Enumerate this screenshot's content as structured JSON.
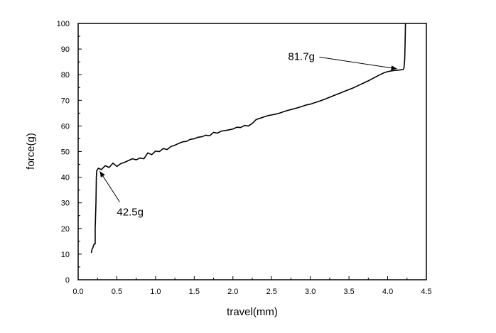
{
  "chart_data": {
    "type": "line",
    "title": "",
    "xlabel": "travel(mm)",
    "ylabel": "force(g)",
    "xlim": [
      0.0,
      4.5
    ],
    "ylim": [
      0,
      100
    ],
    "grid": false,
    "x_ticks": [
      "0.0",
      "0.5",
      "1.0",
      "1.5",
      "2.0",
      "2.5",
      "3.0",
      "3.5",
      "4.0",
      "4.5"
    ],
    "y_ticks": [
      "0",
      "10",
      "20",
      "30",
      "40",
      "50",
      "60",
      "70",
      "80",
      "90",
      "100"
    ],
    "series": [
      {
        "color": "#000000",
        "points": [
          [
            0.17,
            10.5
          ],
          [
            0.18,
            12
          ],
          [
            0.19,
            12.5
          ],
          [
            0.2,
            13.5
          ],
          [
            0.21,
            14
          ],
          [
            0.22,
            14
          ],
          [
            0.22,
            20
          ],
          [
            0.23,
            30
          ],
          [
            0.235,
            40
          ],
          [
            0.24,
            42.5
          ],
          [
            0.26,
            43.5
          ],
          [
            0.3,
            43
          ],
          [
            0.35,
            44.5
          ],
          [
            0.4,
            43.8
          ],
          [
            0.45,
            45.5
          ],
          [
            0.5,
            44.2
          ],
          [
            0.55,
            45.3
          ],
          [
            0.6,
            45.8
          ],
          [
            0.65,
            46.5
          ],
          [
            0.7,
            47.2
          ],
          [
            0.75,
            46.8
          ],
          [
            0.8,
            47.5
          ],
          [
            0.85,
            47.2
          ],
          [
            0.9,
            49.5
          ],
          [
            0.95,
            48.8
          ],
          [
            1.0,
            50.2
          ],
          [
            1.05,
            50.0
          ],
          [
            1.1,
            51.2
          ],
          [
            1.15,
            50.8
          ],
          [
            1.2,
            52.0
          ],
          [
            1.25,
            52.5
          ],
          [
            1.3,
            53.2
          ],
          [
            1.35,
            53.8
          ],
          [
            1.4,
            54.0
          ],
          [
            1.45,
            54.8
          ],
          [
            1.5,
            55.0
          ],
          [
            1.55,
            55.6
          ],
          [
            1.6,
            55.8
          ],
          [
            1.65,
            56.4
          ],
          [
            1.7,
            56.2
          ],
          [
            1.75,
            57.5
          ],
          [
            1.8,
            57.2
          ],
          [
            1.85,
            58.0
          ],
          [
            1.9,
            58.2
          ],
          [
            1.95,
            58.5
          ],
          [
            2.0,
            58.8
          ],
          [
            2.05,
            59.5
          ],
          [
            2.1,
            59.4
          ],
          [
            2.15,
            60.2
          ],
          [
            2.2,
            60.0
          ],
          [
            2.25,
            61.0
          ],
          [
            2.3,
            62.5
          ],
          [
            2.35,
            63.0
          ],
          [
            2.4,
            63.5
          ],
          [
            2.45,
            64.0
          ],
          [
            2.5,
            64.3
          ],
          [
            2.55,
            64.6
          ],
          [
            2.6,
            65.0
          ],
          [
            2.65,
            65.5
          ],
          [
            2.7,
            66.0
          ],
          [
            2.75,
            66.4
          ],
          [
            2.8,
            66.8
          ],
          [
            2.85,
            67.2
          ],
          [
            2.9,
            67.7
          ],
          [
            2.95,
            68.2
          ],
          [
            3.0,
            68.5
          ],
          [
            3.05,
            69.0
          ],
          [
            3.1,
            69.5
          ],
          [
            3.15,
            70.0
          ],
          [
            3.2,
            70.6
          ],
          [
            3.25,
            71.2
          ],
          [
            3.3,
            71.8
          ],
          [
            3.35,
            72.4
          ],
          [
            3.4,
            73.0
          ],
          [
            3.45,
            73.6
          ],
          [
            3.5,
            74.2
          ],
          [
            3.55,
            74.8
          ],
          [
            3.6,
            75.5
          ],
          [
            3.65,
            76.2
          ],
          [
            3.7,
            76.9
          ],
          [
            3.75,
            77.6
          ],
          [
            3.8,
            78.4
          ],
          [
            3.85,
            79.2
          ],
          [
            3.9,
            80.0
          ],
          [
            3.95,
            80.7
          ],
          [
            4.0,
            81.2
          ],
          [
            4.05,
            81.5
          ],
          [
            4.1,
            81.7
          ],
          [
            4.15,
            81.8
          ],
          [
            4.2,
            82.0
          ],
          [
            4.21,
            82.5
          ],
          [
            4.22,
            86
          ],
          [
            4.225,
            92
          ],
          [
            4.23,
            100
          ]
        ]
      }
    ],
    "annotations": [
      {
        "text": "42.5g",
        "label_at": [
          0.72,
          26.5
        ],
        "arrow_to": [
          0.28,
          42.3
        ]
      },
      {
        "text": "81.7g",
        "label_at": [
          3.08,
          85.5
        ],
        "arrow_to": [
          4.12,
          82.3
        ]
      }
    ]
  }
}
